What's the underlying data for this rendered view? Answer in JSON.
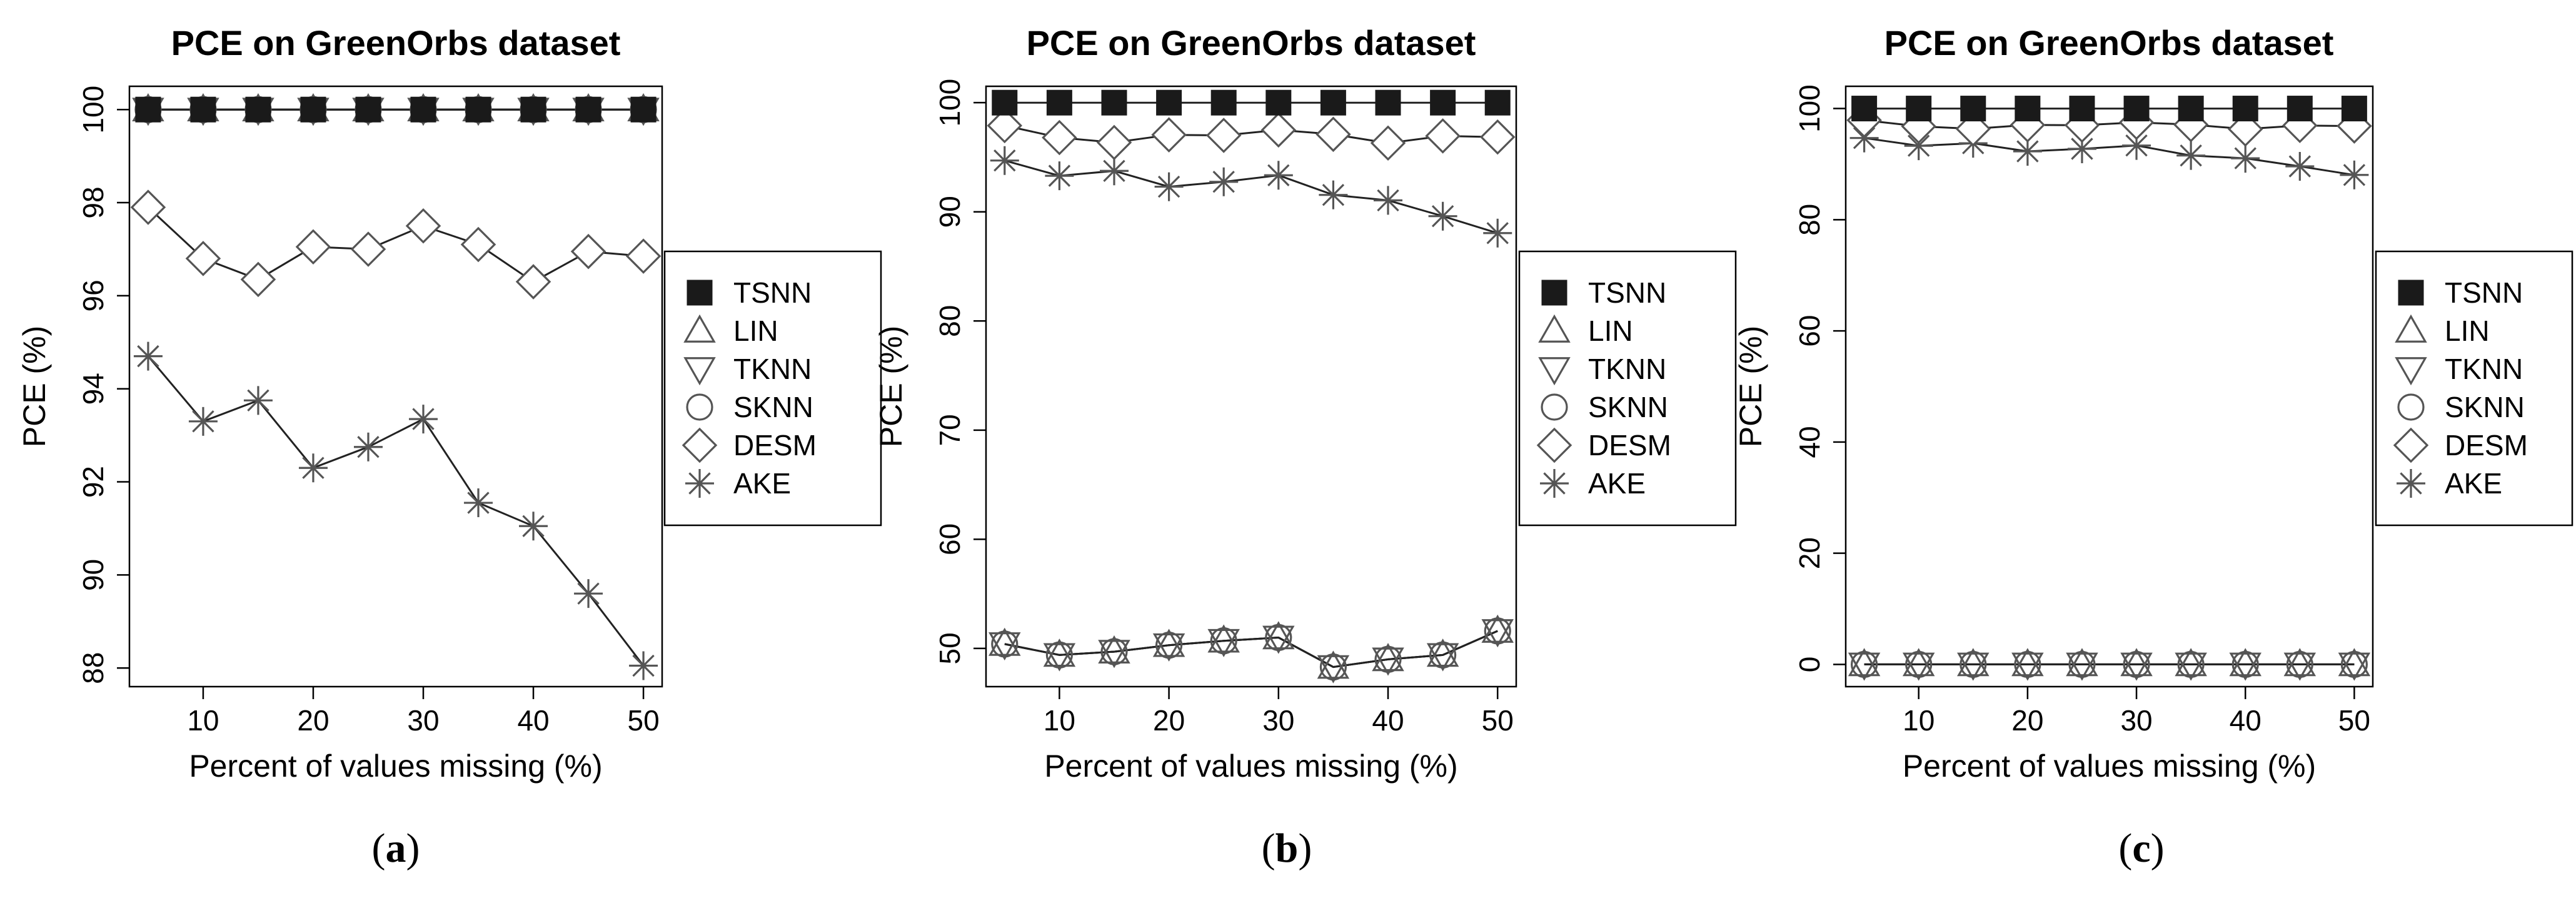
{
  "series_names": [
    "TSNN",
    "LIN",
    "TKNN",
    "SKNN",
    "DESM",
    "AKE"
  ],
  "markers": {
    "TSNN": "filled-square",
    "LIN": "triangle-up",
    "TKNN": "triangle-down",
    "SKNN": "circle",
    "DESM": "diamond",
    "AKE": "asterisk"
  },
  "colors": {
    "ink": "#000000",
    "line": "#222222",
    "marker_stroke": "#555555",
    "background": "#ffffff"
  },
  "chart_data": [
    {
      "type": "line",
      "panel_label": {
        "open": "(",
        "letter": "a",
        "close": ")"
      },
      "title": "PCE on GreenOrbs dataset",
      "xlabel": "Percent of values missing (%)",
      "ylabel": "PCE (%)",
      "x": [
        5,
        10,
        15,
        20,
        25,
        30,
        35,
        40,
        45,
        50
      ],
      "xlim": [
        3.3,
        51.7
      ],
      "ylim": [
        87.6,
        100.5
      ],
      "xticks": [
        10,
        20,
        30,
        40,
        50
      ],
      "yticks": [
        88,
        90,
        92,
        94,
        96,
        98,
        100
      ],
      "grid": false,
      "legend": "right",
      "series": [
        {
          "name": "TSNN",
          "values": [
            100,
            100,
            100,
            100,
            100,
            100,
            100,
            100,
            100,
            100
          ]
        },
        {
          "name": "LIN",
          "values": [
            100,
            100,
            100,
            100,
            100,
            100,
            100,
            100,
            100,
            100
          ]
        },
        {
          "name": "TKNN",
          "values": [
            100,
            100,
            100,
            100,
            100,
            100,
            100,
            100,
            100,
            100
          ]
        },
        {
          "name": "SKNN",
          "values": [
            100,
            100,
            100,
            100,
            100,
            100,
            100,
            100,
            100,
            100
          ]
        },
        {
          "name": "DESM",
          "values": [
            97.9,
            96.8,
            96.35,
            97.05,
            97.0,
            97.5,
            97.1,
            96.3,
            96.95,
            96.85
          ]
        },
        {
          "name": "AKE",
          "values": [
            94.7,
            93.3,
            93.75,
            92.3,
            92.75,
            93.35,
            91.55,
            91.05,
            89.6,
            88.05
          ]
        }
      ]
    },
    {
      "type": "line",
      "panel_label": {
        "open": "(",
        "letter": "b",
        "close": ")"
      },
      "title": "PCE on GreenOrbs dataset",
      "xlabel": "Percent of values missing (%)",
      "ylabel": "PCE (%)",
      "x": [
        5,
        10,
        15,
        20,
        25,
        30,
        35,
        40,
        45,
        50
      ],
      "xlim": [
        3.3,
        51.7
      ],
      "ylim": [
        46.5,
        101.5
      ],
      "xticks": [
        10,
        20,
        30,
        40,
        50
      ],
      "yticks": [
        50,
        60,
        70,
        80,
        90,
        100
      ],
      "grid": false,
      "legend": "right",
      "series": [
        {
          "name": "TSNN",
          "values": [
            100,
            100,
            100,
            100,
            100,
            100,
            100,
            100,
            100,
            100
          ]
        },
        {
          "name": "LIN",
          "values": [
            50.4,
            49.4,
            49.7,
            50.3,
            50.7,
            51.0,
            48.3,
            49.0,
            49.4,
            51.6
          ]
        },
        {
          "name": "TKNN",
          "values": [
            50.4,
            49.4,
            49.7,
            50.3,
            50.7,
            51.0,
            48.3,
            49.0,
            49.4,
            51.6
          ]
        },
        {
          "name": "SKNN",
          "values": [
            50.4,
            49.4,
            49.7,
            50.3,
            50.7,
            51.0,
            48.3,
            49.0,
            49.4,
            51.6
          ]
        },
        {
          "name": "DESM",
          "values": [
            97.9,
            96.8,
            96.35,
            97.05,
            97.0,
            97.5,
            97.1,
            96.3,
            96.95,
            96.85
          ]
        },
        {
          "name": "AKE",
          "values": [
            94.7,
            93.3,
            93.75,
            92.3,
            92.75,
            93.35,
            91.55,
            91.05,
            89.6,
            88.05
          ]
        }
      ]
    },
    {
      "type": "line",
      "panel_label": {
        "open": "(",
        "letter": "c",
        "close": ")"
      },
      "title": "PCE on GreenOrbs dataset",
      "xlabel": "Percent of values missing (%)",
      "ylabel": "PCE (%)",
      "x": [
        5,
        10,
        15,
        20,
        25,
        30,
        35,
        40,
        45,
        50
      ],
      "xlim": [
        3.3,
        51.7
      ],
      "ylim": [
        -4,
        104
      ],
      "xticks": [
        10,
        20,
        30,
        40,
        50
      ],
      "yticks": [
        0,
        20,
        40,
        60,
        80,
        100
      ],
      "grid": false,
      "legend": "right",
      "series": [
        {
          "name": "TSNN",
          "values": [
            100,
            100,
            100,
            100,
            100,
            100,
            100,
            100,
            100,
            100
          ]
        },
        {
          "name": "LIN",
          "values": [
            0,
            0,
            0,
            0,
            0,
            0,
            0,
            0,
            0,
            0
          ]
        },
        {
          "name": "TKNN",
          "values": [
            0,
            0,
            0,
            0,
            0,
            0,
            0,
            0,
            0,
            0
          ]
        },
        {
          "name": "SKNN",
          "values": [
            0,
            0,
            0,
            0,
            0,
            0,
            0,
            0,
            0,
            0
          ]
        },
        {
          "name": "DESM",
          "values": [
            97.9,
            96.8,
            96.35,
            97.05,
            97.0,
            97.5,
            97.1,
            96.3,
            96.95,
            96.85
          ]
        },
        {
          "name": "AKE",
          "values": [
            94.7,
            93.3,
            93.75,
            92.3,
            92.75,
            93.35,
            91.55,
            91.05,
            89.6,
            88.05
          ]
        }
      ]
    }
  ]
}
